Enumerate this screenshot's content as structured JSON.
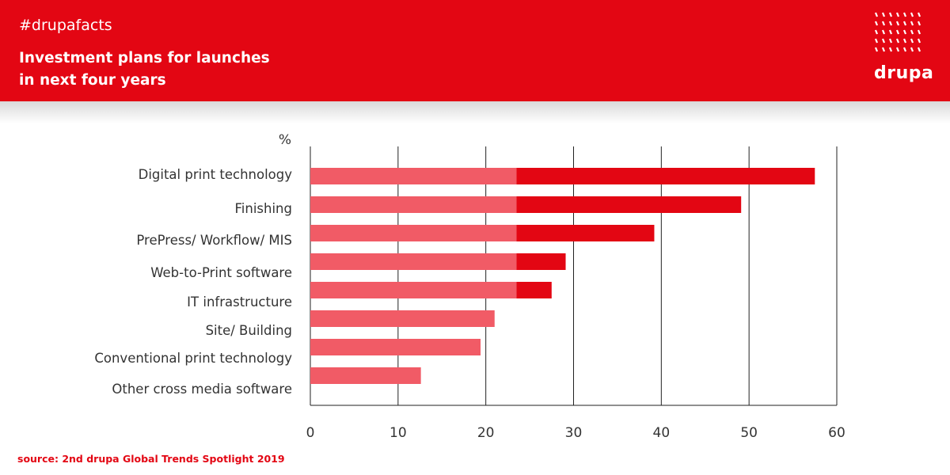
{
  "header": {
    "hashtag": "#drupafacts",
    "title_line1": "Investment plans for launches",
    "title_line2": "in next four years",
    "logo_text": "drupa"
  },
  "source": "source: 2nd drupa Global Trends Spotlight 2019",
  "colors": {
    "brand_red": "#e30613",
    "light_red": "#f15b66",
    "white": "#ffffff"
  },
  "chart_data": {
    "type": "bar",
    "orientation": "horizontal",
    "stacked": true,
    "unit_label": "%",
    "categories": [
      "Digital print technology",
      "Finishing",
      "PrePress/ Workflow/ MIS",
      "Web-to-Print software",
      "IT infrastructure",
      "Site/ Building",
      "Conventional print technology",
      "Other cross media software"
    ],
    "series": [
      {
        "color": "#f15b66",
        "values": [
          23.5,
          23.5,
          23.5,
          23.5,
          23.5,
          21,
          19.4,
          12.6
        ]
      },
      {
        "color": "#e30613",
        "values": [
          34,
          25.6,
          15.7,
          5.6,
          4,
          0,
          0,
          0
        ]
      }
    ],
    "xlim": [
      0,
      60
    ],
    "xticks": [
      0,
      10,
      20,
      30,
      40,
      50,
      60
    ],
    "grid": true
  }
}
